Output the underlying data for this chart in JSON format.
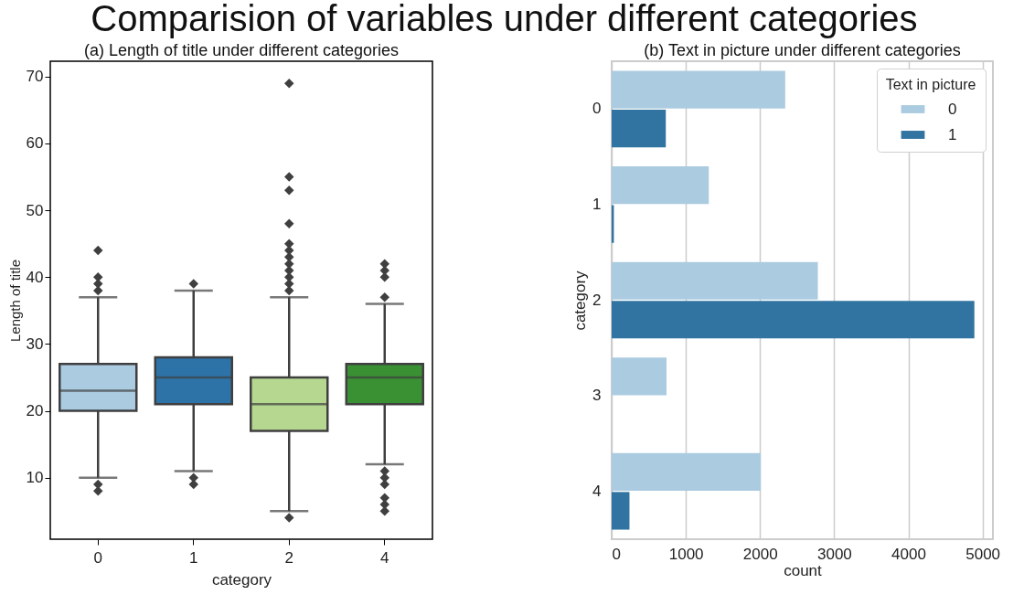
{
  "chart_data": [
    {
      "type": "box",
      "title": "Comparision of variables under different categories",
      "subtitle": "(a) Length of title under different categories",
      "xlabel": "category",
      "ylabel": "Length of title",
      "categories": [
        "0",
        "1",
        "2",
        "4"
      ],
      "colors": [
        "#abcbe0",
        "#2d73a8",
        "#b5d78f",
        "#3a9134"
      ],
      "marker": "diamond",
      "ylim": [
        0.8,
        72.3
      ],
      "yticks": [
        10,
        20,
        30,
        40,
        50,
        60,
        70
      ],
      "boxes": [
        {
          "low": 10,
          "q1": 20,
          "median": 23,
          "q3": 27,
          "high": 37,
          "outliers": [
            8,
            9,
            38,
            39,
            40,
            44
          ]
        },
        {
          "low": 11,
          "q1": 21,
          "median": 25,
          "q3": 28,
          "high": 38,
          "outliers": [
            9,
            10,
            39
          ]
        },
        {
          "low": 5,
          "q1": 17,
          "median": 21,
          "q3": 25,
          "high": 37,
          "outliers": [
            4,
            38,
            39,
            40,
            41,
            42,
            43,
            44,
            45,
            48,
            53,
            55,
            69
          ]
        },
        {
          "low": 12,
          "q1": 21,
          "median": 25,
          "q3": 27,
          "high": 36,
          "outliers": [
            5,
            6,
            7,
            9,
            10,
            11,
            37,
            40,
            41,
            42
          ]
        }
      ]
    },
    {
      "type": "bar",
      "orientation": "horizontal",
      "title": "(b) Text in picture under different categories",
      "xlabel": "count",
      "ylabel": "category",
      "legend_title": "Text in picture",
      "legend": "top right",
      "grid": "x",
      "categories": [
        "0",
        "1",
        "2",
        "3",
        "4"
      ],
      "xlim": [
        0,
        5140
      ],
      "xticks": [
        0,
        1000,
        2000,
        3000,
        4000,
        5000
      ],
      "series": [
        {
          "name": "0",
          "color": "#abcbe0",
          "values": [
            2340,
            1310,
            2780,
            740,
            2010
          ]
        },
        {
          "name": "1",
          "color": "#3274a1",
          "values": [
            730,
            30,
            4890,
            null,
            240
          ]
        }
      ]
    }
  ]
}
